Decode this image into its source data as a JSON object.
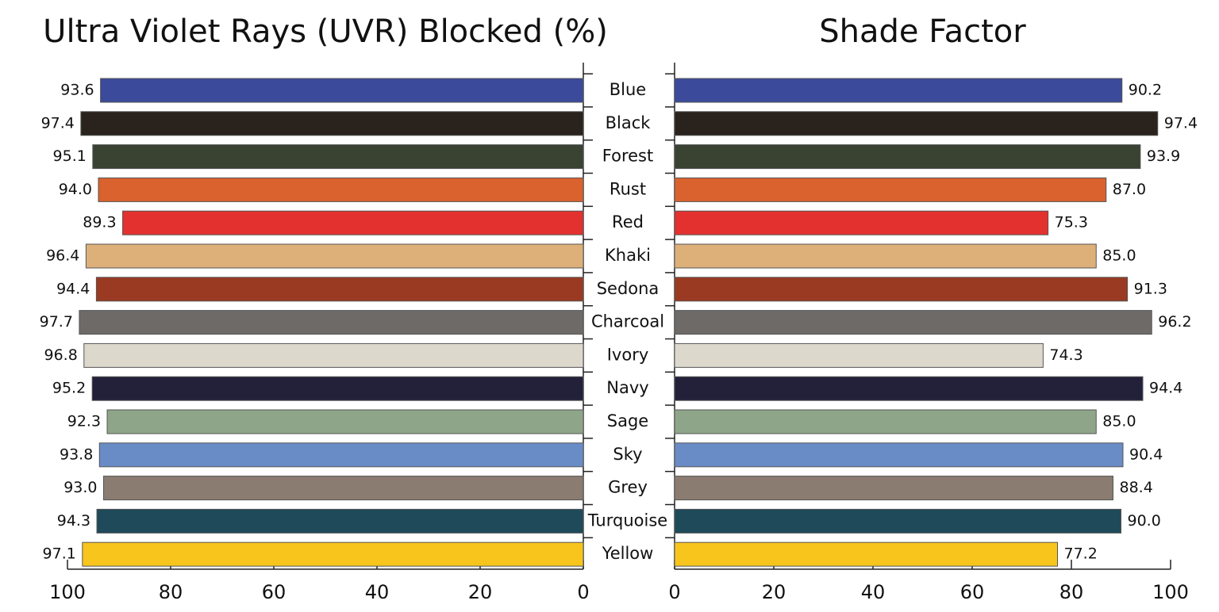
{
  "chart_data": [
    {
      "type": "bar",
      "orientation": "horizontal",
      "title": "Ultra Violet Rays (UVR) Blocked (%)",
      "categories": [
        "Blue",
        "Black",
        "Forest",
        "Rust",
        "Red",
        "Khaki",
        "Sedona",
        "Charcoal",
        "Ivory",
        "Navy",
        "Sage",
        "Sky",
        "Grey",
        "Turquoise",
        "Yellow"
      ],
      "values": [
        93.6,
        97.4,
        95.1,
        94.0,
        89.3,
        96.4,
        94.4,
        97.7,
        96.8,
        95.2,
        92.3,
        93.8,
        93.0,
        94.3,
        97.1
      ],
      "value_labels": [
        "93.6",
        "97.4",
        "95.1",
        "94.0",
        "89.3",
        "96.4",
        "94.4",
        "97.7",
        "96.8",
        "95.2",
        "92.3",
        "93.8",
        "93.0",
        "94.3",
        "97.1"
      ],
      "colors": [
        "#3b4a9a",
        "#2a221c",
        "#3a4232",
        "#d9622f",
        "#e3312f",
        "#ddb07a",
        "#9a3a22",
        "#6e6a68",
        "#ddd8cc",
        "#23213a",
        "#8fa58a",
        "#6a8cc6",
        "#8a7c70",
        "#1e4a5a",
        "#f7c51c"
      ],
      "xlim": [
        100,
        0
      ],
      "xticks": [
        100,
        80,
        60,
        40,
        20,
        0
      ]
    },
    {
      "type": "bar",
      "orientation": "horizontal",
      "title": "Shade Factor",
      "values": [
        90.2,
        97.4,
        93.9,
        87.0,
        75.3,
        85.0,
        91.3,
        96.2,
        74.3,
        94.4,
        85.0,
        90.4,
        88.4,
        90.0,
        77.2
      ],
      "value_labels": [
        "90.2",
        "97.4",
        "93.9",
        "87.0",
        "75.3",
        "85.0",
        "91.3",
        "96.2",
        "74.3",
        "94.4",
        "85.0",
        "90.4",
        "88.4",
        "90.0",
        "77.2"
      ],
      "colors": [
        "#3b4a9a",
        "#2a221c",
        "#3a4232",
        "#d9622f",
        "#e3312f",
        "#ddb07a",
        "#9a3a22",
        "#6e6a68",
        "#ddd8cc",
        "#23213a",
        "#8fa58a",
        "#6a8cc6",
        "#8a7c70",
        "#1e4a5a",
        "#f7c51c"
      ],
      "xlim": [
        0,
        100
      ],
      "xticks": [
        0,
        20,
        40,
        60,
        80,
        100
      ]
    }
  ]
}
